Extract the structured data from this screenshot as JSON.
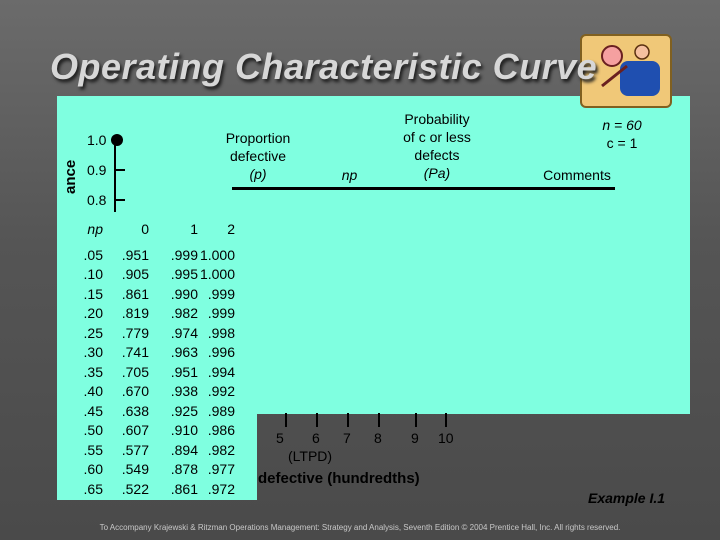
{
  "slide": {
    "title": "Operating Characteristic Curve",
    "footer": "To Accompany Krajewski & Ritzman Operations Management: Strategy and Analysis, Seventh Edition © 2004 Prentice Hall, Inc. All rights reserved.",
    "example_label": "Example I.1"
  },
  "chart": {
    "y_axis_title_visible": "ance",
    "y_ticks": [
      "1.0",
      "0.9",
      "0.8"
    ],
    "x_axis_title_visible": "defective (hundredths)",
    "x_labels": [
      "5",
      "6",
      "7",
      "8",
      "9",
      "10"
    ],
    "ltpd_label": "(LTPD)"
  },
  "table_header": {
    "proportion_line1": "Proportion",
    "proportion_line2": "defective",
    "proportion_line3": "(p)",
    "np": "np",
    "prob_line1": "Probability",
    "prob_line2": "of c or less",
    "prob_line3": "defects",
    "prob_line4": "(Pa)",
    "n_value": "n = 60",
    "c_value": "c = 1",
    "comments": "Comments"
  },
  "poisson_table": {
    "col_np_header": "np",
    "col_0_header": "0",
    "col_1_header": "1",
    "col_2_header": "2",
    "np": [
      ".05",
      ".10",
      ".15",
      ".20",
      ".25",
      ".30",
      ".35",
      ".40",
      ".45",
      ".50",
      ".55",
      ".60",
      ".65"
    ],
    "c0": [
      ".951",
      ".905",
      ".861",
      ".819",
      ".779",
      ".741",
      ".705",
      ".670",
      ".638",
      ".607",
      ".577",
      ".549",
      ".522"
    ],
    "c1": [
      ".999",
      ".995",
      ".990",
      ".982",
      ".974",
      ".963",
      ".951",
      ".938",
      ".925",
      ".910",
      ".894",
      ".878",
      ".861"
    ],
    "c2": [
      "1.000",
      "1.000",
      ".999",
      ".999",
      ".998",
      ".996",
      ".994",
      ".992",
      ".989",
      ".986",
      ".982",
      ".977",
      ".972"
    ]
  }
}
